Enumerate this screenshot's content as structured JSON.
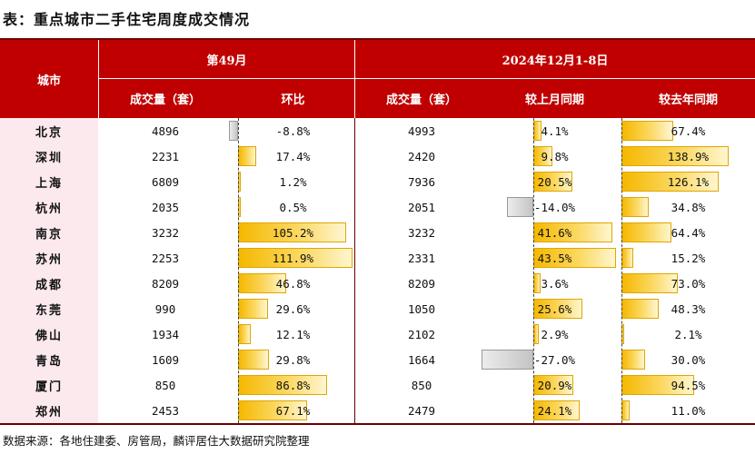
{
  "title": "表：重点城市二手住宅周度成交情况",
  "header": {
    "city": "城市",
    "week_group": "第49月",
    "period_group": "2024年12月1-8日",
    "week_volume": "成交量（套）",
    "week_change": "环比",
    "period_volume": "成交量（套）",
    "mom": "较上月同期",
    "yoy": "较去年同期"
  },
  "rows": [
    {
      "city": "北京",
      "w_vol": "4896",
      "w_chg": "-8.8%",
      "w_chg_v": -8.8,
      "p_vol": "4993",
      "mom": "4.1%",
      "mom_v": 4.1,
      "yoy": "67.4%",
      "yoy_v": 67.4
    },
    {
      "city": "深圳",
      "w_vol": "2231",
      "w_chg": "17.4%",
      "w_chg_v": 17.4,
      "p_vol": "2420",
      "mom": "9.8%",
      "mom_v": 9.8,
      "yoy": "138.9%",
      "yoy_v": 138.9
    },
    {
      "city": "上海",
      "w_vol": "6809",
      "w_chg": "1.2%",
      "w_chg_v": 1.2,
      "p_vol": "7936",
      "mom": "20.5%",
      "mom_v": 20.5,
      "yoy": "126.1%",
      "yoy_v": 126.1
    },
    {
      "city": "杭州",
      "w_vol": "2035",
      "w_chg": "0.5%",
      "w_chg_v": 0.5,
      "p_vol": "2051",
      "mom": "-14.0%",
      "mom_v": -14.0,
      "yoy": "34.8%",
      "yoy_v": 34.8
    },
    {
      "city": "南京",
      "w_vol": "3232",
      "w_chg": "105.2%",
      "w_chg_v": 105.2,
      "p_vol": "3232",
      "mom": "41.6%",
      "mom_v": 41.6,
      "yoy": "64.4%",
      "yoy_v": 64.4
    },
    {
      "city": "苏州",
      "w_vol": "2253",
      "w_chg": "111.9%",
      "w_chg_v": 111.9,
      "p_vol": "2331",
      "mom": "43.5%",
      "mom_v": 43.5,
      "yoy": "15.2%",
      "yoy_v": 15.2
    },
    {
      "city": "成都",
      "w_vol": "8209",
      "w_chg": "46.8%",
      "w_chg_v": 46.8,
      "p_vol": "8209",
      "mom": "3.6%",
      "mom_v": 3.6,
      "yoy": "73.0%",
      "yoy_v": 73.0
    },
    {
      "city": "东莞",
      "w_vol": "990",
      "w_chg": "29.6%",
      "w_chg_v": 29.6,
      "p_vol": "1050",
      "mom": "25.6%",
      "mom_v": 25.6,
      "yoy": "48.3%",
      "yoy_v": 48.3
    },
    {
      "city": "佛山",
      "w_vol": "1934",
      "w_chg": "12.1%",
      "w_chg_v": 12.1,
      "p_vol": "2102",
      "mom": "2.9%",
      "mom_v": 2.9,
      "yoy": "2.1%",
      "yoy_v": 2.1
    },
    {
      "city": "青岛",
      "w_vol": "1609",
      "w_chg": "29.8%",
      "w_chg_v": 29.8,
      "p_vol": "1664",
      "mom": "-27.0%",
      "mom_v": -27.0,
      "yoy": "30.0%",
      "yoy_v": 30.0
    },
    {
      "city": "厦门",
      "w_vol": "850",
      "w_chg": "86.8%",
      "w_chg_v": 86.8,
      "p_vol": "850",
      "mom": "20.9%",
      "mom_v": 20.9,
      "yoy": "94.5%",
      "yoy_v": 94.5
    },
    {
      "city": "郑州",
      "w_vol": "2453",
      "w_chg": "67.1%",
      "w_chg_v": 67.1,
      "p_vol": "2479",
      "mom": "24.1%",
      "mom_v": 24.1,
      "yoy": "11.0%",
      "yoy_v": 11.0
    }
  ],
  "source": "数据来源：各地住建委、房管局，麟评居住大数据研究院整理",
  "colors": {
    "header": "#c00000",
    "bar_positive": "#f5b800",
    "bar_negative": "#c4c4c4",
    "city_bg": "#fbe9ee"
  }
}
